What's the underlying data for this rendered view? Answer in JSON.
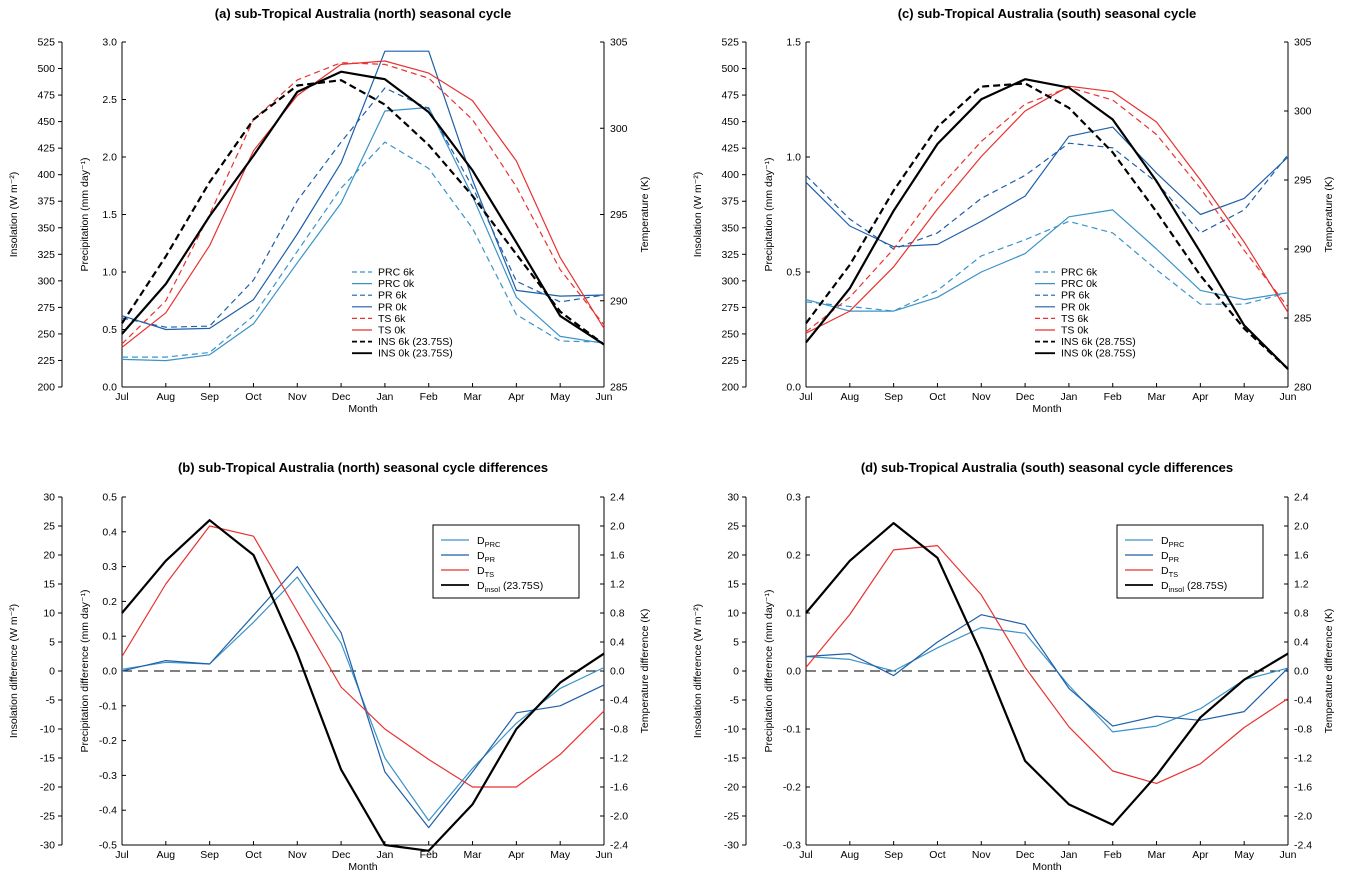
{
  "chart_data": [
    {
      "type": "line",
      "title": "(a) sub-Tropical Australia (north) seasonal cycle",
      "xlabel": "Month",
      "ylabel_outer": "Insolation (W m⁻²)",
      "ylabel_inner": "Precipitation (mm day⁻¹)",
      "ylabel_right": "Temperature (K)",
      "categories": [
        "Jul",
        "Aug",
        "Sep",
        "Oct",
        "Nov",
        "Dec",
        "Jan",
        "Feb",
        "Mar",
        "Apr",
        "May",
        "Jun"
      ],
      "outer_ticks": [
        "200",
        "225",
        "250",
        "275",
        "300",
        "325",
        "350",
        "375",
        "400",
        "425",
        "450",
        "475",
        "500",
        "525"
      ],
      "inner_ticks": [
        "0.0",
        "0.5",
        "1.0",
        "1.5",
        "2.0",
        "2.5",
        "3.0"
      ],
      "right_ticks": [
        "285",
        "290",
        "295",
        "300",
        "305"
      ],
      "legend": "inline",
      "series": [
        {
          "name": "PRC 6k",
          "axis": "precip",
          "color": "#3a93c8",
          "dash": true,
          "values": [
            0.26,
            0.26,
            0.3,
            0.62,
            1.18,
            1.73,
            2.13,
            1.9,
            1.38,
            0.63,
            0.4,
            0.39
          ]
        },
        {
          "name": "PRC 0k",
          "axis": "precip",
          "color": "#3a93c8",
          "dash": false,
          "values": [
            0.24,
            0.23,
            0.28,
            0.55,
            1.08,
            1.6,
            2.4,
            2.43,
            1.66,
            0.78,
            0.44,
            0.38
          ]
        },
        {
          "name": "PR 6k",
          "axis": "precip",
          "color": "#1f5fa8",
          "dash": true,
          "values": [
            0.6,
            0.52,
            0.53,
            0.93,
            1.62,
            2.13,
            2.6,
            2.42,
            1.74,
            0.92,
            0.74,
            0.8
          ]
        },
        {
          "name": "PR 0k",
          "axis": "precip",
          "color": "#1f5fa8",
          "dash": false,
          "values": [
            0.62,
            0.5,
            0.51,
            0.76,
            1.33,
            1.95,
            2.92,
            2.92,
            1.8,
            0.84,
            0.79,
            0.8
          ]
        },
        {
          "name": "TS 6k",
          "axis": "temp",
          "color": "#e8322f",
          "dash": true,
          "values": [
            287.5,
            290.0,
            295.0,
            300.5,
            302.8,
            303.8,
            303.7,
            302.9,
            300.5,
            296.6,
            291.8,
            288.6
          ]
        },
        {
          "name": "TS 0k",
          "axis": "temp",
          "color": "#e8322f",
          "dash": false,
          "values": [
            287.3,
            289.3,
            293.2,
            298.7,
            301.9,
            303.7,
            303.9,
            303.2,
            301.6,
            298.1,
            292.5,
            288.4
          ]
        },
        {
          "name": "INS 6k (23.75S)",
          "axis": "insol",
          "color": "#000000",
          "dash": true,
          "values": [
            260,
            323,
            393,
            452,
            484,
            489,
            466,
            428,
            380,
            325,
            271,
            240
          ]
        },
        {
          "name": "INS 0k (23.75S)",
          "axis": "insol",
          "color": "#000000",
          "dash": false,
          "values": [
            250,
            297,
            361,
            418,
            478,
            497,
            490,
            459,
            404,
            336,
            267,
            240
          ]
        }
      ]
    },
    {
      "type": "line",
      "title": "(b) sub-Tropical Australia (north) seasonal cycle differences",
      "xlabel": "Month",
      "ylabel_outer": "Insolation difference (W m⁻²)",
      "ylabel_inner": "Precipitation difference (mm day⁻¹)",
      "ylabel_right": "Temperature difference (K)",
      "categories": [
        "Jul",
        "Aug",
        "Sep",
        "Oct",
        "Nov",
        "Dec",
        "Jan",
        "Feb",
        "Mar",
        "Apr",
        "May",
        "Jun"
      ],
      "outer_ticks": [
        "-30",
        "-25",
        "-20",
        "-15",
        "-10",
        "-5",
        "0",
        "5",
        "10",
        "15",
        "20",
        "25",
        "30"
      ],
      "inner_ticks": [
        "-0.5",
        "-0.4",
        "-0.3",
        "-0.2",
        "-0.1",
        "0.0",
        "0.1",
        "0.2",
        "0.3",
        "0.4",
        "0.5"
      ],
      "right_ticks": [
        "-2.4",
        "-2.0",
        "-1.6",
        "-1.2",
        "-0.8",
        "-0.4",
        "0.0",
        "0.4",
        "0.8",
        "1.2",
        "1.6",
        "2.0",
        "2.4"
      ],
      "legend": "top-right",
      "series": [
        {
          "name": "PRC",
          "axis": "precip",
          "color": "#3a93c8",
          "dash": false,
          "values": [
            0.005,
            0.025,
            0.02,
            0.14,
            0.27,
            0.08,
            -0.25,
            -0.43,
            -0.28,
            -0.15,
            -0.05,
            0.01
          ]
        },
        {
          "name": "PR",
          "axis": "precip",
          "color": "#1f5fa8",
          "dash": false,
          "values": [
            0.0,
            0.03,
            0.02,
            0.16,
            0.3,
            0.11,
            -0.29,
            -0.45,
            -0.29,
            -0.12,
            -0.1,
            -0.04
          ]
        },
        {
          "name": "TS",
          "axis": "temp",
          "color": "#e8322f",
          "dash": false,
          "values": [
            0.2,
            1.2,
            2.0,
            1.86,
            0.82,
            -0.22,
            -0.8,
            -1.22,
            -1.6,
            -1.6,
            -1.15,
            -0.55
          ]
        },
        {
          "name": "insol (23.75S)",
          "axis": "insol",
          "color": "#000000",
          "dash": false,
          "values": [
            10,
            19,
            26,
            20,
            3,
            -17,
            -30,
            -31,
            -23,
            -10,
            -2,
            3
          ]
        }
      ],
      "legend_entries": [
        {
          "main": "D",
          "sub": "PRC",
          "extra": ""
        },
        {
          "main": "D",
          "sub": "PR",
          "extra": ""
        },
        {
          "main": "D",
          "sub": "TS",
          "extra": ""
        },
        {
          "main": "D",
          "sub": "insol",
          "extra": " (23.75S)"
        }
      ]
    },
    {
      "type": "line",
      "title": "(c) sub-Tropical Australia (south) seasonal cycle",
      "xlabel": "Month",
      "ylabel_outer": "Insolation (W m⁻²)",
      "ylabel_inner": "Precipitation (mm day⁻¹)",
      "ylabel_right": "Temperature (K)",
      "categories": [
        "Jul",
        "Aug",
        "Sep",
        "Oct",
        "Nov",
        "Dec",
        "Jan",
        "Feb",
        "Mar",
        "Apr",
        "May",
        "Jun"
      ],
      "outer_ticks": [
        "200",
        "225",
        "250",
        "275",
        "300",
        "325",
        "350",
        "375",
        "400",
        "425",
        "450",
        "475",
        "500",
        "525"
      ],
      "inner_ticks": [
        "0.0",
        "0.5",
        "1.0",
        "1.5"
      ],
      "right_ticks": [
        "280",
        "285",
        "290",
        "295",
        "300",
        "305"
      ],
      "legend": "inline",
      "series": [
        {
          "name": "PRC 6k",
          "axis": "precip",
          "color": "#3a93c8",
          "dash": true,
          "values": [
            0.37,
            0.35,
            0.33,
            0.42,
            0.57,
            0.64,
            0.72,
            0.67,
            0.51,
            0.36,
            0.36,
            0.41
          ]
        },
        {
          "name": "PRC 0k",
          "axis": "precip",
          "color": "#3a93c8",
          "dash": false,
          "values": [
            0.38,
            0.33,
            0.33,
            0.39,
            0.5,
            0.58,
            0.74,
            0.77,
            0.6,
            0.42,
            0.38,
            0.41
          ]
        },
        {
          "name": "PR 6k",
          "axis": "precip",
          "color": "#1f5fa8",
          "dash": true,
          "values": [
            0.92,
            0.73,
            0.6,
            0.67,
            0.82,
            0.92,
            1.06,
            1.04,
            0.89,
            0.67,
            0.77,
            1.01
          ]
        },
        {
          "name": "PR 0k",
          "axis": "precip",
          "color": "#1f5fa8",
          "dash": false,
          "values": [
            0.89,
            0.7,
            0.61,
            0.62,
            0.72,
            0.83,
            1.09,
            1.13,
            0.93,
            0.75,
            0.82,
            1.0
          ]
        },
        {
          "name": "TS 6k",
          "axis": "temp",
          "color": "#e8322f",
          "dash": true,
          "values": [
            284.0,
            286.5,
            290.0,
            294.3,
            297.8,
            300.5,
            301.7,
            300.8,
            298.3,
            294.4,
            289.9,
            285.8
          ]
        },
        {
          "name": "TS 0k",
          "axis": "temp",
          "color": "#e8322f",
          "dash": false,
          "values": [
            283.9,
            285.5,
            288.7,
            292.9,
            296.7,
            300.0,
            301.8,
            301.4,
            299.2,
            295.0,
            290.5,
            285.4
          ]
        },
        {
          "name": "INS 6k (28.75S)",
          "axis": "insol",
          "color": "#000000",
          "dash": true,
          "values": [
            260,
            315,
            385,
            445,
            483,
            486,
            463,
            421,
            365,
            305,
            255,
            217
          ]
        },
        {
          "name": "INS 0k (28.75S)",
          "axis": "insol",
          "color": "#000000",
          "dash": false,
          "values": [
            242,
            293,
            366,
            429,
            471,
            490,
            482,
            452,
            394,
            327,
            258,
            217
          ]
        }
      ]
    },
    {
      "type": "line",
      "title": "(d) sub-Tropical Australia (south) seasonal cycle differences",
      "xlabel": "Month",
      "ylabel_outer": "Insolation difference (W m⁻²)",
      "ylabel_inner": "Precipitation difference (mm day⁻¹)",
      "ylabel_right": "Temperature difference (K)",
      "categories": [
        "Jul",
        "Aug",
        "Sep",
        "Oct",
        "Nov",
        "Dec",
        "Jan",
        "Feb",
        "Mar",
        "Apr",
        "May",
        "Jun"
      ],
      "outer_ticks": [
        "-30",
        "-25",
        "-20",
        "-15",
        "-10",
        "-5",
        "0",
        "5",
        "10",
        "15",
        "20",
        "25",
        "30"
      ],
      "inner_ticks": [
        "-0.3",
        "-0.2",
        "-0.1",
        "0.0",
        "0.1",
        "0.2",
        "0.3"
      ],
      "right_ticks": [
        "-2.4",
        "-2.0",
        "-1.6",
        "-1.2",
        "-0.8",
        "-0.4",
        "0.0",
        "0.4",
        "0.8",
        "1.2",
        "1.6",
        "2.0",
        "2.4"
      ],
      "legend": "top-right",
      "series": [
        {
          "name": "PRC",
          "axis": "precip",
          "color": "#3a93c8",
          "dash": false,
          "values": [
            0.025,
            0.02,
            0.0,
            0.04,
            0.075,
            0.065,
            -0.025,
            -0.105,
            -0.095,
            -0.065,
            -0.015,
            0.005
          ]
        },
        {
          "name": "PR",
          "axis": "precip",
          "color": "#1f5fa8",
          "dash": false,
          "values": [
            0.025,
            0.03,
            -0.008,
            0.05,
            0.097,
            0.08,
            -0.03,
            -0.095,
            -0.078,
            -0.085,
            -0.07,
            0.005
          ]
        },
        {
          "name": "TS",
          "axis": "temp",
          "color": "#e8322f",
          "dash": false,
          "values": [
            0.05,
            0.78,
            1.67,
            1.73,
            1.05,
            0.05,
            -0.77,
            -1.38,
            -1.55,
            -1.28,
            -0.78,
            -0.38
          ]
        },
        {
          "name": "insol (28.75S)",
          "axis": "insol",
          "color": "#000000",
          "dash": false,
          "values": [
            10,
            19,
            25.5,
            19.5,
            3,
            -15.5,
            -23,
            -26.5,
            -18,
            -8,
            -1.5,
            3
          ]
        }
      ],
      "legend_entries": [
        {
          "main": "D",
          "sub": "PRC",
          "extra": ""
        },
        {
          "main": "D",
          "sub": "PR",
          "extra": ""
        },
        {
          "main": "D",
          "sub": "TS",
          "extra": ""
        },
        {
          "main": "D",
          "sub": "insol",
          "extra": " (28.75S)"
        }
      ]
    }
  ]
}
